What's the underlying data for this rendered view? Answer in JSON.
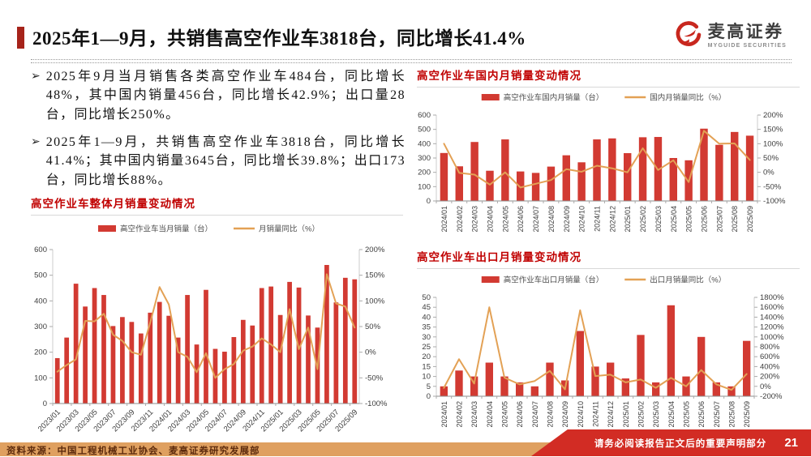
{
  "header": {
    "title": "2025年1—9月，共销售高空作业车3818台，同比增长41.4%",
    "logo_cn": "麦高证券",
    "logo_en": "MYGUIDE SECURITIES"
  },
  "bullets": [
    "2025年9月当月销售各类高空作业车484台，同比增长48%，其中国内销量456台，同比增长42.9%；出口量28台，同比增长250%。",
    "2025年1—9月，共销售高空作业车3818台，同比增长41.4%；其中国内销量3645台，同比增长39.8%；出口173台，同比增长88%。"
  ],
  "bullet_marker": "➢",
  "colors": {
    "bar_red": "#d23a32",
    "line_orange": "#e3a155",
    "accent_red": "#c00000",
    "footer_orange": "#dfa060",
    "footer_red": "#d22c24",
    "axis_text": "#3d3d3d"
  },
  "chart_data": [
    {
      "id": "overall",
      "type": "bar+line",
      "title": "高空作业车整体月销量变动情况",
      "legend": {
        "bar": "高空作业车当月销量（台）",
        "line": "月销量同比（%）"
      },
      "legend_position": "top",
      "grid": false,
      "categories": [
        "2023/01",
        "2023/02",
        "2023/03",
        "2023/04",
        "2023/05",
        "2023/06",
        "2023/07",
        "2023/08",
        "2023/09",
        "2023/10",
        "2023/11",
        "2023/12",
        "2024/01",
        "2024/02",
        "2024/03",
        "2024/04",
        "2024/05",
        "2024/06",
        "2024/07",
        "2024/08",
        "2024/09",
        "2024/10",
        "2024/11",
        "2024/12",
        "2025/01",
        "2025/02",
        "2025/03",
        "2025/04",
        "2025/05",
        "2025/06",
        "2025/07",
        "2025/08",
        "2025/09"
      ],
      "series": [
        {
          "name": "高空作业车当月销量（台）",
          "type": "bar",
          "axis": "left",
          "values": [
            177,
            257,
            467,
            378,
            450,
            423,
            302,
            337,
            318,
            273,
            354,
            396,
            342,
            257,
            423,
            230,
            443,
            213,
            202,
            259,
            326,
            304,
            450,
            456,
            345,
            474,
            452,
            343,
            296,
            540,
            394,
            490,
            484
          ]
        },
        {
          "name": "月销量同比（%）",
          "type": "line",
          "axis": "right",
          "values": [
            -38,
            -25,
            -14,
            61,
            60,
            75,
            34,
            22,
            0,
            -5,
            58,
            127,
            93,
            0,
            -9,
            -39,
            -2,
            -50,
            -33,
            -23,
            3,
            11,
            27,
            15,
            0,
            84,
            6,
            48,
            -33,
            152,
            95,
            89,
            48
          ]
        }
      ],
      "left_axis": {
        "min": 0,
        "max": 600,
        "step": 100,
        "suffix": ""
      },
      "right_axis": {
        "min": -100,
        "max": 200,
        "step": 50,
        "suffix": "%"
      },
      "x_label_every": 2,
      "x_label_rotation": -45
    },
    {
      "id": "domestic",
      "type": "bar+line",
      "title": "高空作业车国内月销量变动情况",
      "legend": {
        "bar": "高空作业车国内月销量（台）",
        "line": "国内月销量同比（%）"
      },
      "legend_position": "top",
      "grid": false,
      "categories": [
        "2024/01",
        "2024/02",
        "2024/03",
        "2024/04",
        "2024/05",
        "2024/06",
        "2024/07",
        "2024/08",
        "2024/09",
        "2024/10",
        "2024/11",
        "2024/12",
        "2025/01",
        "2025/02",
        "2025/03",
        "2025/04",
        "2025/05",
        "2025/06",
        "2025/07",
        "2025/08",
        "2025/09"
      ],
      "series": [
        {
          "name": "高空作业车国内月销量（台）",
          "type": "bar",
          "axis": "left",
          "values": [
            335,
            242,
            412,
            211,
            430,
            206,
            196,
            240,
            319,
            270,
            430,
            437,
            334,
            445,
            447,
            300,
            284,
            505,
            392,
            482,
            456
          ]
        },
        {
          "name": "国内月销量同比（%）",
          "type": "line",
          "axis": "right",
          "values": [
            100,
            -2,
            -8,
            -43,
            0,
            -53,
            -40,
            -27,
            11,
            2,
            23,
            14,
            0,
            84,
            8,
            42,
            -34,
            145,
            100,
            101,
            43
          ]
        }
      ],
      "left_axis": {
        "min": 0,
        "max": 600,
        "step": 100,
        "suffix": ""
      },
      "right_axis": {
        "min": -100,
        "max": 200,
        "step": 50,
        "suffix": "%"
      },
      "x_label_every": 1,
      "x_label_rotation": -90
    },
    {
      "id": "export",
      "type": "bar+line",
      "title": "高空作业车出口月销量变动情况",
      "legend": {
        "bar": "高空作业车出口月销量（台）",
        "line": "出口月销量同比（%）"
      },
      "legend_position": "top",
      "grid": false,
      "categories": [
        "2024/01",
        "2024/02",
        "2024/03",
        "2024/04",
        "2024/05",
        "2024/06",
        "2024/07",
        "2024/08",
        "2024/09",
        "2024/10",
        "2024/11",
        "2024/12",
        "2025/01",
        "2025/02",
        "2025/03",
        "2025/04",
        "2025/05",
        "2025/06",
        "2025/07",
        "2025/08",
        "2025/09"
      ],
      "series": [
        {
          "name": "高空作业车出口月销量（台）",
          "type": "bar",
          "axis": "left",
          "values": [
            5,
            13,
            10,
            17,
            10,
            7,
            5,
            17,
            8,
            33,
            15,
            17,
            9,
            31,
            7,
            46,
            10,
            30,
            7,
            5,
            28
          ]
        },
        {
          "name": "出口月销量同比（%）",
          "type": "line",
          "axis": "right",
          "values": [
            -32,
            550,
            56,
            1600,
            176,
            40,
            108,
            312,
            -60,
            1540,
            208,
            236,
            80,
            138,
            -30,
            171,
            0,
            329,
            40,
            -71,
            250
          ]
        }
      ],
      "left_axis": {
        "min": 0,
        "max": 50,
        "step": 5,
        "suffix": ""
      },
      "right_axis": {
        "min": -200,
        "max": 1800,
        "step": 200,
        "suffix": "%"
      },
      "x_label_every": 1,
      "x_label_rotation": -90
    }
  ],
  "footer": {
    "source": "资料来源：中国工程机械工业协会、麦高证券研究发展部",
    "disclaimer": "请务必阅读报告正文后的重要声明部分",
    "page_number": "21"
  }
}
